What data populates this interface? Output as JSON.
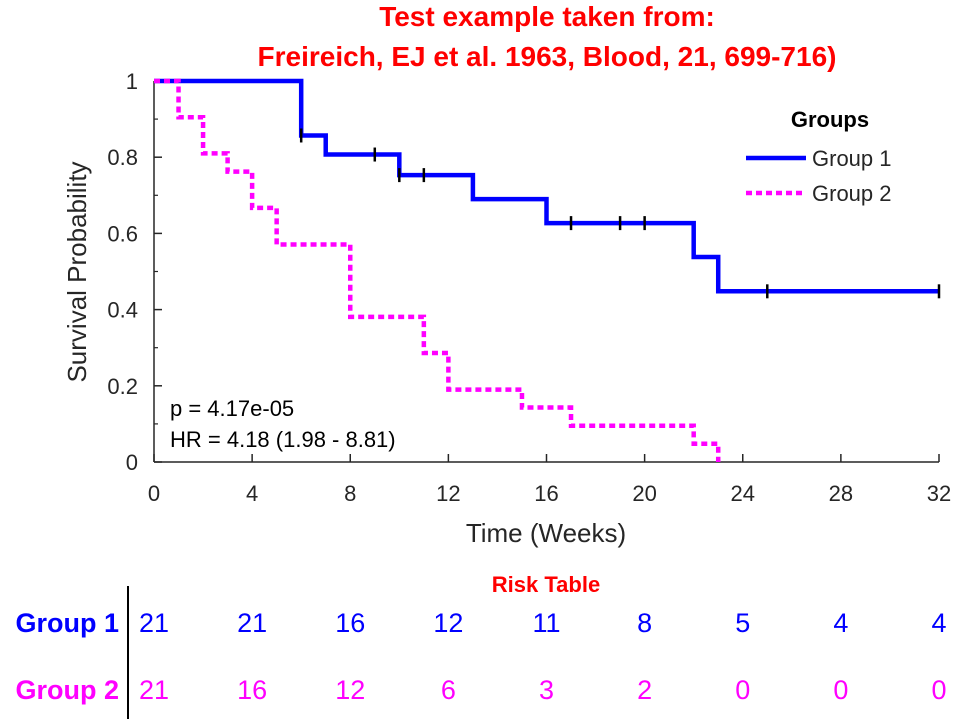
{
  "chart_data": {
    "type": "line",
    "title_lines": [
      "Test example taken from:",
      "Freireich, EJ et al. 1963, Blood, 21, 699-716)"
    ],
    "xlabel": "Time (Weeks)",
    "ylabel": "Survival Probability",
    "xlim": [
      0,
      32
    ],
    "ylim": [
      0,
      1
    ],
    "xticks": [
      0,
      4,
      8,
      12,
      16,
      20,
      24,
      28,
      32
    ],
    "yticks": [
      0,
      0.2,
      0.4,
      0.6,
      0.8,
      1
    ],
    "ytick_labels": [
      "0",
      "0.2",
      "0.4",
      "0.6",
      "0.8",
      "1"
    ],
    "grid": false,
    "legend": {
      "title": "Groups",
      "position": "top-right",
      "entries": [
        "Group 1",
        "Group 2"
      ]
    },
    "series": [
      {
        "name": "Group 1",
        "color": "#0000ff",
        "style": "solid",
        "steps": [
          [
            0,
            1
          ],
          [
            6,
            0.857
          ],
          [
            7,
            0.807
          ],
          [
            10,
            0.753
          ],
          [
            13,
            0.69
          ],
          [
            16,
            0.627
          ],
          [
            22,
            0.538
          ],
          [
            23,
            0.448
          ],
          [
            32,
            0.448
          ]
        ],
        "censored": [
          [
            6,
            0.857
          ],
          [
            9,
            0.807
          ],
          [
            10,
            0.753
          ],
          [
            11,
            0.753
          ],
          [
            17,
            0.627
          ],
          [
            19,
            0.627
          ],
          [
            20,
            0.627
          ],
          [
            25,
            0.448
          ],
          [
            32,
            0.448
          ]
        ]
      },
      {
        "name": "Group 2",
        "color": "#ff00ff",
        "style": "dashed",
        "steps": [
          [
            0,
            1
          ],
          [
            1,
            0.905
          ],
          [
            2,
            0.81
          ],
          [
            3,
            0.762
          ],
          [
            4,
            0.667
          ],
          [
            5,
            0.571
          ],
          [
            8,
            0.381
          ],
          [
            11,
            0.286
          ],
          [
            12,
            0.19
          ],
          [
            15,
            0.143
          ],
          [
            17,
            0.095
          ],
          [
            22,
            0.048
          ],
          [
            23,
            0
          ]
        ],
        "censored": []
      }
    ],
    "annotations": [
      "p = 4.17e-05",
      "HR = 4.18 (1.98 - 8.81)"
    ],
    "risk_table": {
      "title": "Risk Table",
      "times": [
        0,
        4,
        8,
        12,
        16,
        20,
        24,
        28,
        32
      ],
      "rows": [
        {
          "group": "Group 1",
          "color": "#0000ff",
          "values": [
            "21",
            "21",
            "16",
            "12",
            "11",
            "8",
            "5",
            "4",
            "4"
          ]
        },
        {
          "group": "Group 2",
          "color": "#ff00ff",
          "values": [
            "21",
            "16",
            "12",
            "6",
            "3",
            "2",
            "0",
            "0",
            "0"
          ]
        }
      ]
    }
  }
}
